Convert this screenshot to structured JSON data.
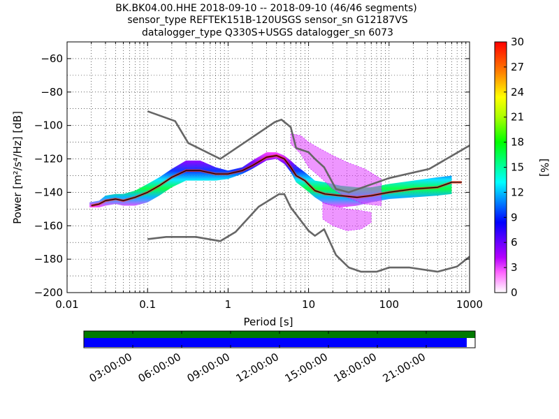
{
  "title_lines": [
    "BK.BK04.00.HHE   2018-09-10 -- 2018-09-10  (46/46 segments)",
    "sensor_type REFTEK151B-120USGS sensor_sn G12187VS",
    "datalogger_type Q330S+USGS datalogger_sn 6073"
  ],
  "chart_data": {
    "type": "heatmap",
    "xscale": "log",
    "xlabel": "Period [s]",
    "ylabel": "Power [m²/s⁴/Hz] [dB]",
    "xlim": [
      0.01,
      1000
    ],
    "ylim": [
      -200,
      -50
    ],
    "x_tick_labels": [
      "0.01",
      "0.1",
      "1",
      "10",
      "100",
      "1000"
    ],
    "y_ticks": [
      -200,
      -180,
      -160,
      -140,
      -120,
      -100,
      -80,
      -60
    ],
    "y_tick_labels": [
      "−200",
      "−180",
      "−160",
      "−140",
      "−120",
      "−100",
      "−80",
      "−60"
    ],
    "grid": true,
    "colorbar": {
      "label": "[%]",
      "range": [
        0,
        30
      ],
      "ticks": [
        "0",
        "3",
        "6",
        "9",
        "12",
        "15",
        "18",
        "21",
        "24",
        "27",
        "30"
      ],
      "colormap": "pqlx"
    },
    "noise_models": [
      {
        "name": "NHNM",
        "points": [
          [
            0.1,
            -91.5
          ],
          [
            0.22,
            -97.4
          ],
          [
            0.32,
            -110.5
          ],
          [
            0.8,
            -120
          ],
          [
            3.8,
            -98
          ],
          [
            4.6,
            -96.5
          ],
          [
            6,
            -101
          ],
          [
            7,
            -113.5
          ],
          [
            10,
            -116
          ],
          [
            12,
            -120
          ],
          [
            15.6,
            -125
          ],
          [
            21.9,
            -138
          ],
          [
            31.6,
            -140
          ],
          [
            100,
            -131.5
          ],
          [
            316,
            -126
          ],
          [
            1000,
            -112
          ]
        ]
      },
      {
        "name": "NLNM",
        "points": [
          [
            0.1,
            -168
          ],
          [
            0.17,
            -166.7
          ],
          [
            0.4,
            -166.7
          ],
          [
            0.8,
            -169.2
          ],
          [
            1.24,
            -163.7
          ],
          [
            2.4,
            -148.6
          ],
          [
            4.3,
            -141.1
          ],
          [
            5,
            -141.1
          ],
          [
            6,
            -149
          ],
          [
            10,
            -163
          ],
          [
            12,
            -166
          ],
          [
            15.6,
            -162.1
          ],
          [
            21.9,
            -177.5
          ],
          [
            31.6,
            -185
          ],
          [
            45,
            -187.5
          ],
          [
            70,
            -187.5
          ],
          [
            100,
            -185
          ],
          [
            180,
            -185
          ],
          [
            400,
            -187.5
          ],
          [
            700,
            -184.4
          ],
          [
            1000,
            -178.5
          ]
        ]
      }
    ],
    "series": [
      {
        "name": "mode",
        "x": [
          0.02,
          0.025,
          0.03,
          0.04,
          0.05,
          0.07,
          0.1,
          0.14,
          0.2,
          0.3,
          0.45,
          0.7,
          1,
          1.5,
          2,
          3,
          4,
          5,
          6,
          7,
          9,
          12,
          16,
          25,
          40,
          60,
          100,
          200,
          400,
          600,
          800
        ],
        "y": [
          -148,
          -147,
          -145,
          -144,
          -145,
          -143,
          -140,
          -136,
          -131,
          -127,
          -127,
          -129,
          -129,
          -127,
          -124,
          -119,
          -118,
          -120,
          -125,
          -130,
          -133,
          -139,
          -141,
          -142,
          -143,
          -142,
          -140,
          -138,
          -137,
          -134,
          -134
        ]
      }
    ],
    "heatmap_bands": [
      {
        "name": "main-band",
        "x": [
          0.019,
          0.025,
          0.03,
          0.04,
          0.05,
          0.07,
          0.1,
          0.14,
          0.2,
          0.3,
          0.45,
          0.7,
          1,
          1.5,
          2,
          3,
          4,
          5,
          6,
          7,
          9,
          12,
          16,
          25,
          40,
          60,
          100,
          200,
          400,
          600
        ],
        "upper": [
          -146,
          -145,
          -142,
          -141,
          -141,
          -139,
          -135,
          -131,
          -126,
          -121,
          -121,
          -125,
          -127,
          -125,
          -121,
          -116,
          -116,
          -118,
          -121,
          -124,
          -128,
          -133,
          -134,
          -136,
          -137,
          -137,
          -135,
          -133,
          -131,
          -130
        ],
        "lower": [
          -149,
          -149,
          -148,
          -147,
          -148,
          -148,
          -146,
          -142,
          -137,
          -133,
          -133,
          -133,
          -132,
          -129,
          -126,
          -121,
          -120,
          -123,
          -128,
          -134,
          -138,
          -143,
          -147,
          -149,
          -148,
          -146,
          -144,
          -143,
          -142,
          -141
        ]
      },
      {
        "name": "upper-spray",
        "x": [
          6,
          8,
          10,
          14,
          20,
          30,
          50,
          80
        ],
        "upper": [
          -105,
          -106,
          -110,
          -114,
          -118,
          -122,
          -126,
          -132
        ],
        "lower": [
          -111,
          -117,
          -125,
          -131,
          -138,
          -143,
          -147,
          -148
        ]
      },
      {
        "name": "lower-spray",
        "x": [
          15,
          20,
          30,
          45,
          60
        ],
        "upper": [
          -146,
          -148,
          -150,
          -151,
          -152
        ],
        "lower": [
          -156,
          -160,
          -163,
          -162,
          -158
        ]
      }
    ]
  },
  "timeline": {
    "tick_labels": [
      "03:00:00",
      "06:00:00",
      "09:00:00",
      "12:00:00",
      "15:00:00",
      "18:00:00",
      "21:00:00"
    ],
    "top_bar_fill": 1.0,
    "bottom_bar_fill": 0.9785
  }
}
